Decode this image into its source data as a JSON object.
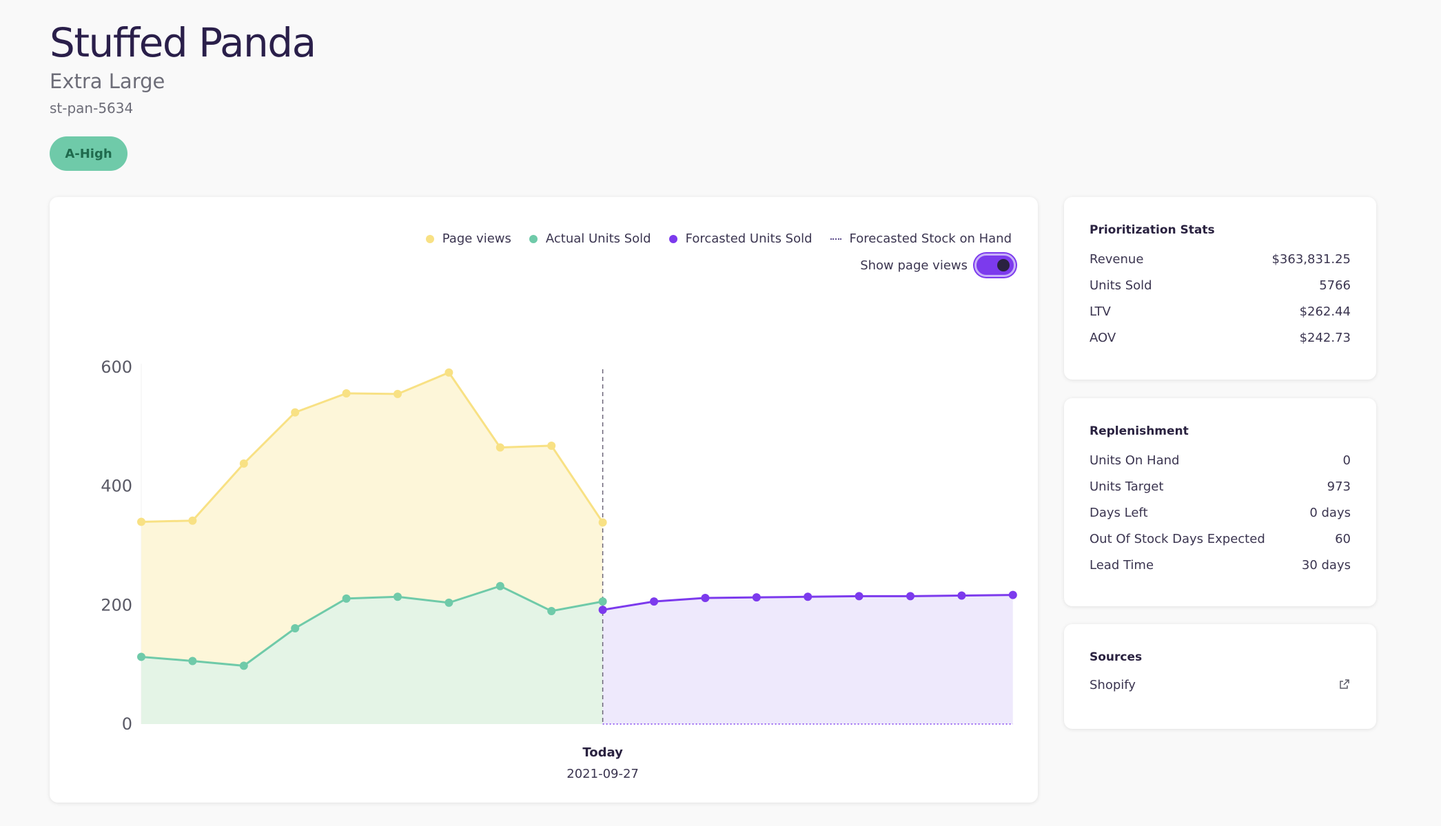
{
  "product": {
    "title": "Stuffed Panda",
    "subtitle": "Extra Large",
    "sku": "st-pan-5634",
    "badge": "A-High"
  },
  "chart": {
    "legend": [
      "Page views",
      "Actual Units Sold",
      "Forcasted Units Sold",
      "Forecasted Stock on Hand"
    ],
    "toggle_label": "Show page views",
    "toggle_on": true,
    "today_label": "Today",
    "today_date": "2021-09-27",
    "colors": {
      "page_views": "#f8e184",
      "actual": "#6fcaa9",
      "forecast": "#7c3aed",
      "page_views_fill": "#fdf6d9",
      "actual_fill": "#e4f4e6",
      "forecast_fill": "#eee9fc"
    }
  },
  "chart_data": {
    "type": "area",
    "y_ticks": [
      "600",
      "400",
      "200",
      "0"
    ],
    "ylim": [
      0,
      600
    ],
    "series": [
      {
        "name": "Page views",
        "values": [
          340,
          342,
          438,
          524,
          556,
          555,
          591,
          465,
          468,
          339
        ]
      },
      {
        "name": "Actual Units Sold",
        "values": [
          113,
          106,
          98,
          161,
          211,
          214,
          204,
          232,
          190,
          206
        ]
      },
      {
        "name": "Forcasted Units Sold",
        "values": [
          192,
          206,
          212,
          213,
          214,
          215,
          215,
          216,
          217
        ]
      }
    ]
  },
  "prioritization": {
    "title": "Prioritization Stats",
    "rows": [
      {
        "label": "Revenue",
        "value": "$363,831.25"
      },
      {
        "label": "Units Sold",
        "value": "5766"
      },
      {
        "label": "LTV",
        "value": "$262.44"
      },
      {
        "label": "AOV",
        "value": "$242.73"
      }
    ]
  },
  "replenishment": {
    "title": "Replenishment",
    "rows": [
      {
        "label": "Units On Hand",
        "value": "0"
      },
      {
        "label": "Units Target",
        "value": "973"
      },
      {
        "label": "Days Left",
        "value": "0 days"
      },
      {
        "label": "Out Of Stock Days Expected",
        "value": "60"
      },
      {
        "label": "Lead Time",
        "value": "30 days"
      }
    ]
  },
  "sources": {
    "title": "Sources",
    "items": [
      {
        "label": "Shopify",
        "icon": "external-link-icon"
      }
    ]
  }
}
